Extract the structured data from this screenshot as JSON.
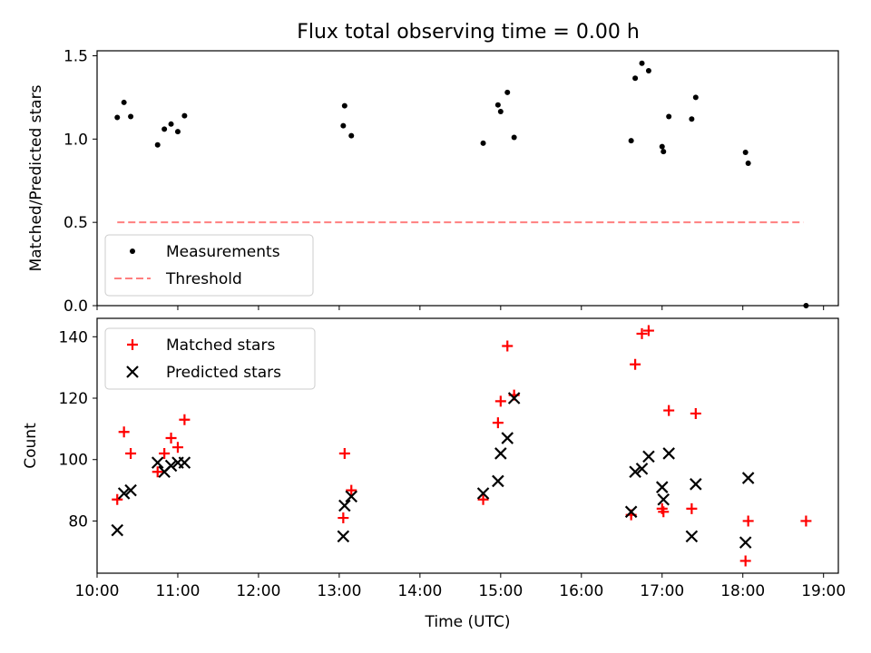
{
  "figure_title": "Flux total observing time = 0.00 h",
  "colors": {
    "measurement": "#000000",
    "threshold": "#ff7f7f",
    "matched": "#ff0000",
    "predicted": "#000000"
  },
  "chart_data": [
    {
      "type": "scatter",
      "ylabel": "Matched/Predicted stars",
      "ylim": [
        0,
        1.53
      ],
      "yticks": [
        0.0,
        0.5,
        1.0,
        1.5
      ],
      "ytick_labels": [
        "0.0",
        "0.5",
        "1.0",
        "1.5"
      ],
      "xlim": [
        "10:00",
        "19:11"
      ],
      "grid": false,
      "legend": "lower-left",
      "series": [
        {
          "name": "Measurements",
          "marker": "dot",
          "points": [
            [
              "10:15",
              1.13
            ],
            [
              "10:20",
              1.22
            ],
            [
              "10:25",
              1.135
            ],
            [
              "10:45",
              0.965
            ],
            [
              "10:50",
              1.06
            ],
            [
              "10:55",
              1.09
            ],
            [
              "11:00",
              1.045
            ],
            [
              "11:05",
              1.14
            ],
            [
              "13:03",
              1.08
            ],
            [
              "13:04",
              1.2
            ],
            [
              "13:09",
              1.02
            ],
            [
              "14:47",
              0.975
            ],
            [
              "14:58",
              1.205
            ],
            [
              "15:00",
              1.165
            ],
            [
              "15:05",
              1.28
            ],
            [
              "15:10",
              1.01
            ],
            [
              "16:37",
              0.99
            ],
            [
              "16:40",
              1.365
            ],
            [
              "16:45",
              1.455
            ],
            [
              "16:50",
              1.41
            ],
            [
              "17:00",
              0.955
            ],
            [
              "17:01",
              0.925
            ],
            [
              "17:05",
              1.135
            ],
            [
              "17:22",
              1.12
            ],
            [
              "17:25",
              1.25
            ],
            [
              "18:02",
              0.92
            ],
            [
              "18:04",
              0.855
            ],
            [
              "18:47",
              0.0
            ]
          ]
        },
        {
          "name": "Threshold",
          "style": "dashed",
          "points": [
            [
              "10:15",
              0.5
            ],
            [
              "18:45",
              0.5
            ]
          ]
        }
      ]
    },
    {
      "type": "scatter",
      "xlabel": "Time (UTC)",
      "ylabel": "Count",
      "ylim": [
        63,
        146
      ],
      "yticks": [
        80,
        100,
        120,
        140
      ],
      "ytick_labels": [
        "80",
        "100",
        "120",
        "140"
      ],
      "xlim": [
        "10:00",
        "19:11"
      ],
      "xticks": [
        "10:00",
        "11:00",
        "12:00",
        "13:00",
        "14:00",
        "15:00",
        "16:00",
        "17:00",
        "18:00",
        "19:00"
      ],
      "grid": false,
      "legend": "upper-left",
      "series": [
        {
          "name": "Matched stars",
          "marker": "plus",
          "points": [
            [
              "10:15",
              87
            ],
            [
              "10:20",
              109
            ],
            [
              "10:25",
              102
            ],
            [
              "10:45",
              96
            ],
            [
              "10:50",
              102
            ],
            [
              "10:55",
              107
            ],
            [
              "11:00",
              104
            ],
            [
              "11:05",
              113
            ],
            [
              "13:03",
              81
            ],
            [
              "13:04",
              102
            ],
            [
              "13:09",
              90
            ],
            [
              "14:47",
              87
            ],
            [
              "14:58",
              112
            ],
            [
              "15:00",
              119
            ],
            [
              "15:05",
              137
            ],
            [
              "15:10",
              121
            ],
            [
              "16:37",
              82
            ],
            [
              "16:40",
              131
            ],
            [
              "16:45",
              141
            ],
            [
              "16:50",
              142
            ],
            [
              "17:00",
              84
            ],
            [
              "17:01",
              83
            ],
            [
              "17:05",
              116
            ],
            [
              "17:22",
              84
            ],
            [
              "17:25",
              115
            ],
            [
              "18:02",
              67
            ],
            [
              "18:04",
              80
            ],
            [
              "18:47",
              80
            ]
          ]
        },
        {
          "name": "Predicted stars",
          "marker": "x",
          "points": [
            [
              "10:15",
              77
            ],
            [
              "10:20",
              89
            ],
            [
              "10:25",
              90
            ],
            [
              "10:45",
              99
            ],
            [
              "10:50",
              96
            ],
            [
              "10:55",
              98
            ],
            [
              "11:00",
              99
            ],
            [
              "11:05",
              99
            ],
            [
              "13:03",
              75
            ],
            [
              "13:04",
              85
            ],
            [
              "13:09",
              88
            ],
            [
              "14:47",
              89
            ],
            [
              "14:58",
              93
            ],
            [
              "15:00",
              102
            ],
            [
              "15:05",
              107
            ],
            [
              "15:10",
              120
            ],
            [
              "16:37",
              83
            ],
            [
              "16:40",
              96
            ],
            [
              "16:45",
              97
            ],
            [
              "16:50",
              101
            ],
            [
              "17:00",
              91
            ],
            [
              "17:01",
              87
            ],
            [
              "17:05",
              102
            ],
            [
              "17:22",
              75
            ],
            [
              "17:25",
              92
            ],
            [
              "18:02",
              73
            ],
            [
              "18:04",
              94
            ]
          ]
        }
      ]
    }
  ]
}
